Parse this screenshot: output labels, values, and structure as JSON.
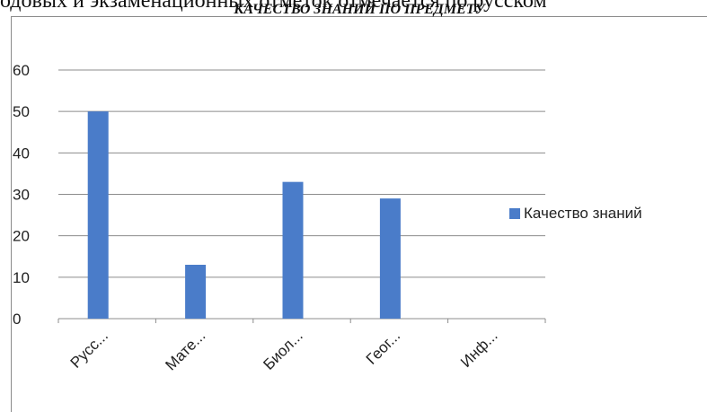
{
  "document": {
    "fragment_text": "одовых и экзаменационных отметок отмечается по русском"
  },
  "chart_data": {
    "type": "bar",
    "title": "КАЧЕСТВО ЗНАНИЙ ПО ПРЕДМЕТУ",
    "categories": [
      "Русс...",
      "Мате...",
      "Биол...",
      "Геог...",
      "Инф..."
    ],
    "series": [
      {
        "name": "Качество знаний",
        "values": [
          50,
          13,
          33,
          29,
          0
        ],
        "color": "#4a7cc9"
      }
    ],
    "ylim": [
      0,
      60
    ],
    "yticks": [
      0,
      10,
      20,
      30,
      40,
      50,
      60
    ],
    "grid": true,
    "legend_position": "right"
  }
}
